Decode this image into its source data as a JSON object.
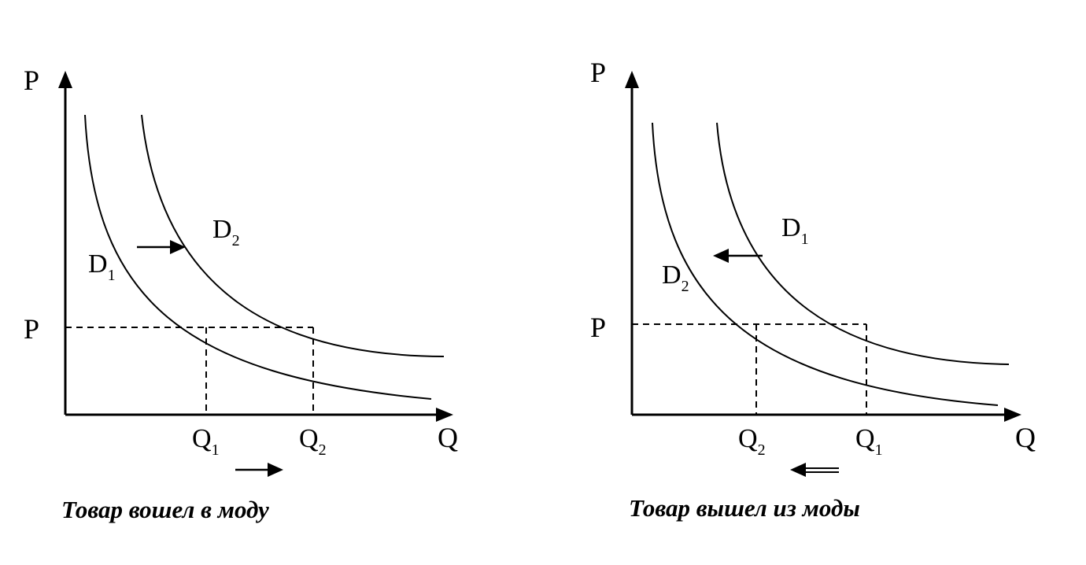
{
  "panels": [
    {
      "axis_y_label": "P",
      "axis_x_label": "Q",
      "price_label": "P",
      "curve_lower_label": {
        "main": "D",
        "sub": "1"
      },
      "curve_upper_label": {
        "main": "D",
        "sub": "2"
      },
      "q_left_label": {
        "main": "Q",
        "sub": "1"
      },
      "q_right_label": {
        "main": "Q",
        "sub": "2"
      },
      "shift_direction": "right",
      "caption": "Товар вошел в моду"
    },
    {
      "axis_y_label": "P",
      "axis_x_label": "Q",
      "price_label": "P",
      "curve_lower_label": {
        "main": "D",
        "sub": "2"
      },
      "curve_upper_label": {
        "main": "D",
        "sub": "1"
      },
      "q_left_label": {
        "main": "Q",
        "sub": "2"
      },
      "q_right_label": {
        "main": "Q",
        "sub": "1"
      },
      "shift_direction": "left",
      "caption": "Товар вышел из моды"
    }
  ]
}
